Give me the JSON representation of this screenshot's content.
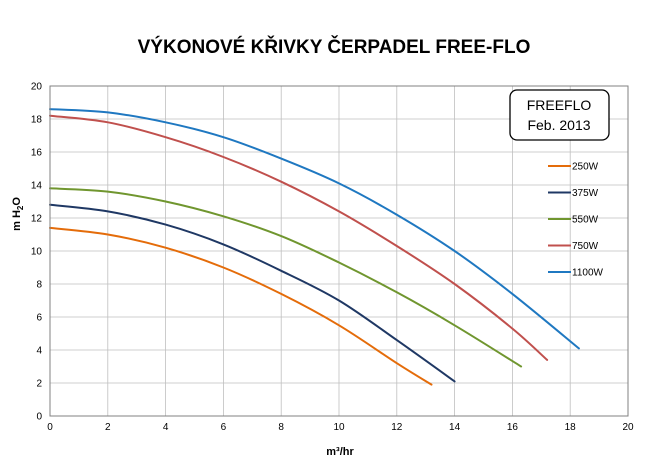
{
  "chart_data": {
    "type": "line",
    "title": "VÝKONOVÉ KŘIVKY ČERPADEL FREE-FLO",
    "xlabel": "m³/hr",
    "ylabel": "m H2O",
    "ylabel_parts": {
      "pre": "m H",
      "sub": "2",
      "post": "O"
    },
    "xlim": [
      0,
      20
    ],
    "ylim": [
      0,
      20
    ],
    "x_ticks": [
      0,
      2,
      4,
      6,
      8,
      10,
      12,
      14,
      16,
      18,
      20
    ],
    "y_ticks": [
      0,
      2,
      4,
      6,
      8,
      10,
      12,
      14,
      16,
      18,
      20
    ],
    "grid": true,
    "legend_position": "right",
    "annotation": {
      "line1": "FREEFLO",
      "line2": "Feb. 2013"
    },
    "series": [
      {
        "name": "250W",
        "color": "#e46c0a",
        "x": [
          0,
          2,
          4,
          6,
          8,
          10,
          12,
          13.2
        ],
        "y": [
          11.4,
          11.0,
          10.2,
          9.0,
          7.4,
          5.5,
          3.2,
          1.9
        ]
      },
      {
        "name": "375W",
        "color": "#1f3864",
        "x": [
          0,
          2,
          4,
          6,
          8,
          10,
          12,
          14
        ],
        "y": [
          12.8,
          12.4,
          11.6,
          10.4,
          8.8,
          7.0,
          4.6,
          2.1
        ]
      },
      {
        "name": "550W",
        "color": "#70962f",
        "x": [
          0,
          2,
          4,
          6,
          8,
          10,
          12,
          14,
          16.3
        ],
        "y": [
          13.8,
          13.6,
          13.0,
          12.1,
          10.9,
          9.3,
          7.5,
          5.5,
          3.0
        ]
      },
      {
        "name": "750W",
        "color": "#c0504d",
        "x": [
          0,
          2,
          4,
          6,
          8,
          10,
          12,
          14,
          16,
          17.2
        ],
        "y": [
          18.2,
          17.8,
          16.9,
          15.7,
          14.2,
          12.4,
          10.3,
          8.0,
          5.3,
          3.4
        ]
      },
      {
        "name": "1100W",
        "color": "#1f78c1",
        "x": [
          0,
          2,
          4,
          6,
          8,
          10,
          12,
          14,
          16,
          18.3
        ],
        "y": [
          18.6,
          18.4,
          17.8,
          16.9,
          15.6,
          14.1,
          12.2,
          10.0,
          7.4,
          4.1
        ]
      }
    ]
  }
}
